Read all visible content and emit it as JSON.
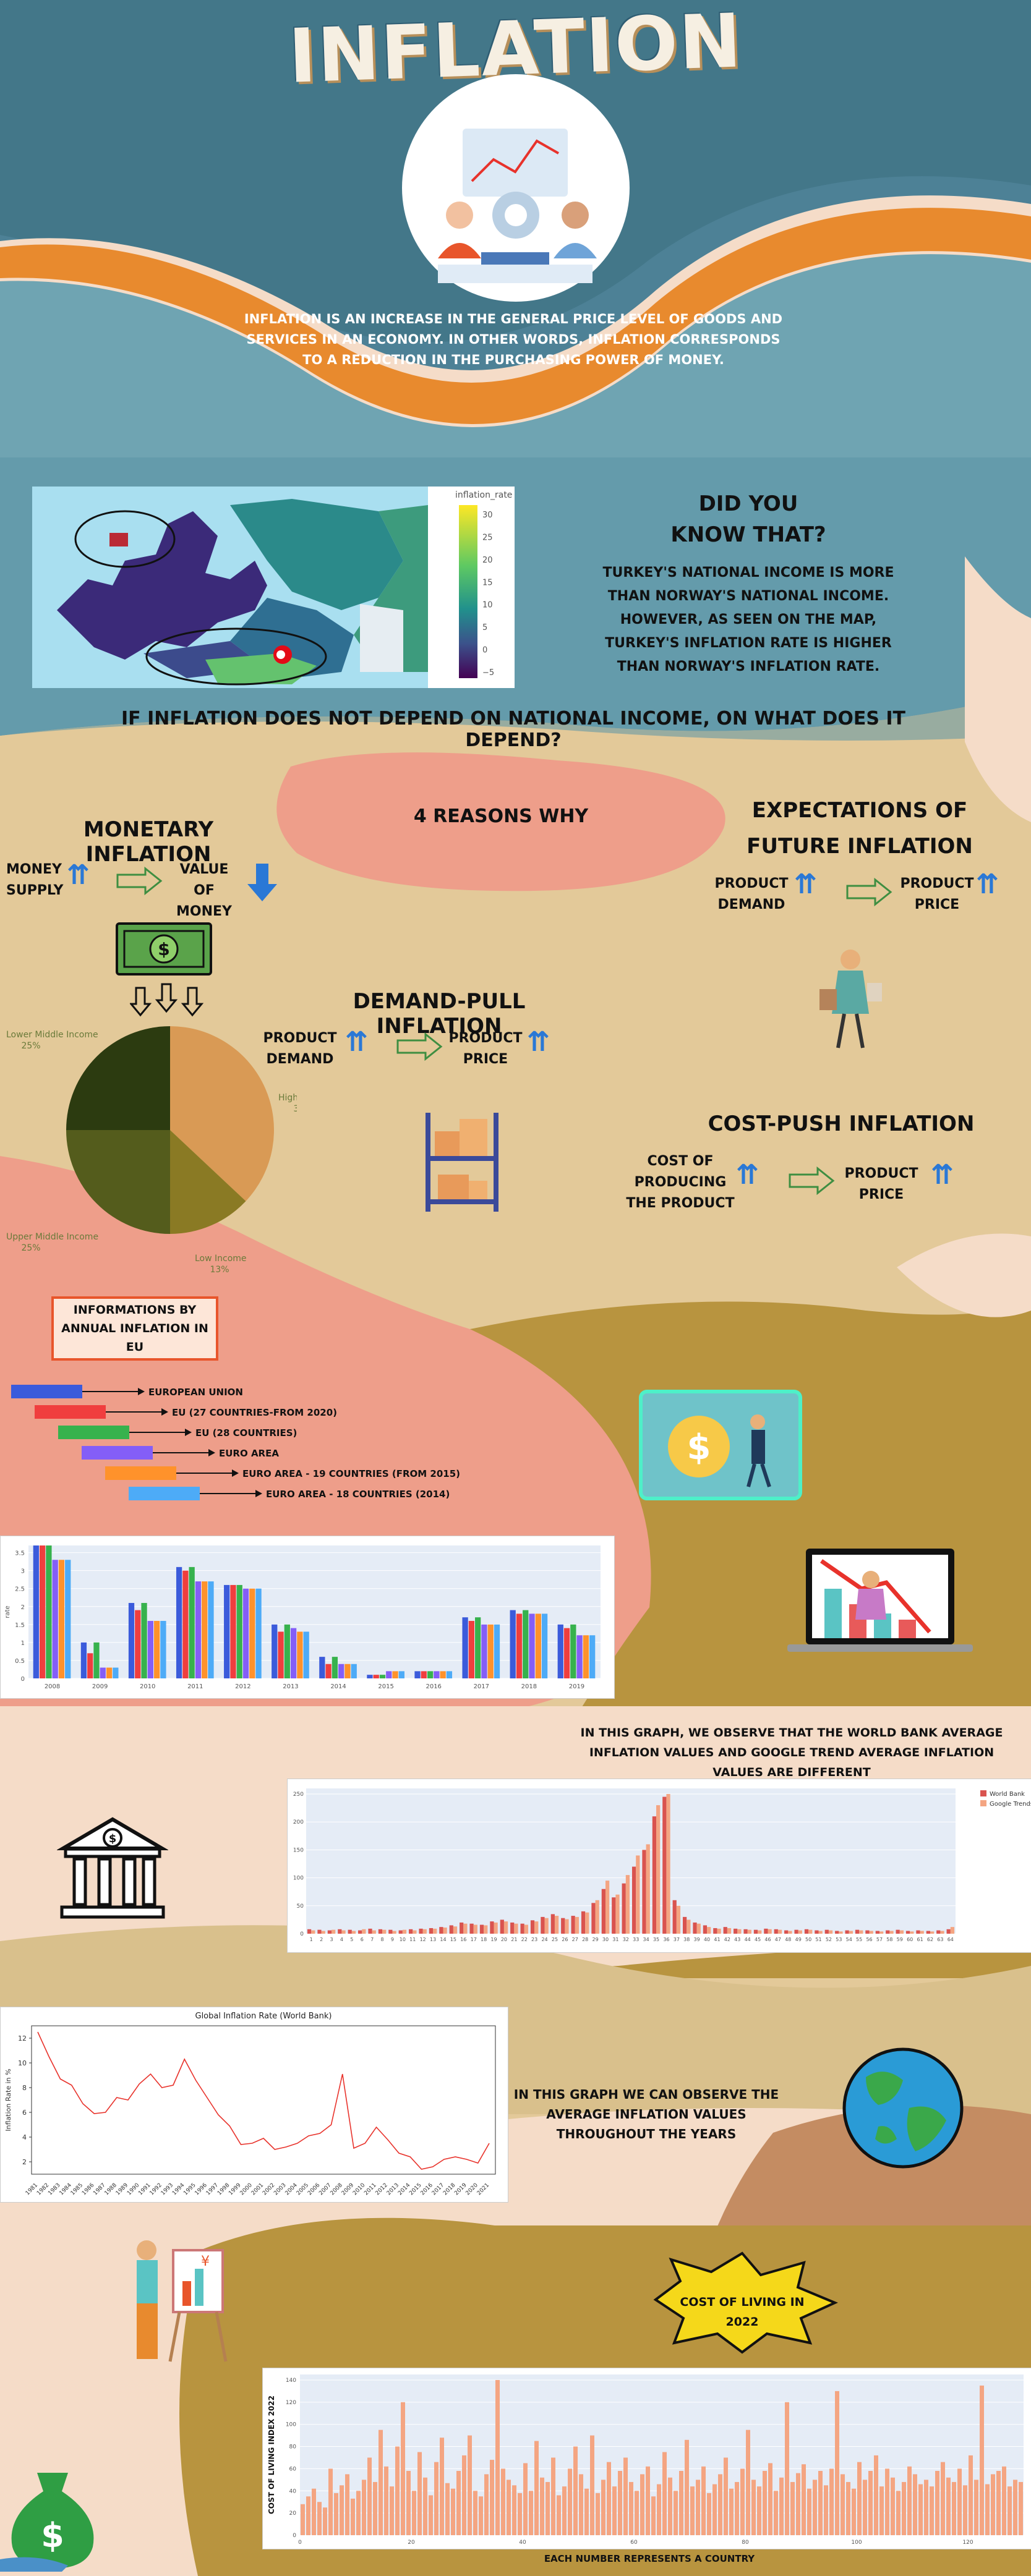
{
  "header": {
    "title": "INFLATION",
    "intro": "INFLATION IS AN INCREASE IN THE GENERAL PRICE LEVEL OF GOODS AND SERVICES IN AN ECONOMY. IN OTHER WORDS, INFLATION CORRESPONDS TO A REDUCTION IN THE PURCHASING POWER OF MONEY."
  },
  "map": {
    "colorbar_title": "inflation_rate",
    "colorbar_ticks": [
      "30",
      "25",
      "20",
      "15",
      "10",
      "5",
      "0",
      "−5"
    ]
  },
  "did_you_know": {
    "title": "DID YOU KNOW THAT?",
    "text": "TURKEY'S NATIONAL INCOME IS MORE THAN NORWAY'S NATIONAL INCOME. HOWEVER, AS SEEN ON THE MAP, TURKEY'S INFLATION RATE IS HIGHER THAN NORWAY'S INFLATION RATE."
  },
  "question": "IF INFLATION DOES NOT DEPEND ON NATIONAL INCOME, ON WHAT DOES IT DEPEND?",
  "reasons": {
    "title": "4 REASONS WHY",
    "monetary": {
      "title": "MONETARY INFLATION",
      "left": "MONEY SUPPLY",
      "right": "VALUE OF MONEY"
    },
    "expectations": {
      "title": "EXPECTATIONS OF FUTURE INFLATION",
      "left": "PRODUCT DEMAND",
      "right": "PRODUCT PRICE"
    },
    "demand_pull": {
      "title": "DEMAND-PULL INFLATION",
      "left": "PRODUCT DEMAND",
      "right": "PRODUCT PRICE"
    },
    "cost_push": {
      "title": "COST-PUSH INFLATION",
      "left": "COST OF PRODUCING THE PRODUCT",
      "right": "PRODUCT PRICE"
    }
  },
  "eu_box": {
    "title": "INFORMATIONS BY ANNUAL INFLATION IN EU",
    "legend": [
      {
        "label": "EUROPEAN UNION",
        "color": "#3b5bdb"
      },
      {
        "label": "EU (27 COUNTRIES-FROM 2020)",
        "color": "#f03e3e"
      },
      {
        "label": "EU (28 COUNTRIES)",
        "color": "#37b24d"
      },
      {
        "label": "EURO AREA",
        "color": "#845ef7"
      },
      {
        "label": "EURO AREA - 19 COUNTRIES (FROM 2015)",
        "color": "#ff922b"
      },
      {
        "label": "EURO AREA - 18 COUNTRIES (2014)",
        "color": "#4dabf7"
      }
    ]
  },
  "notes": {
    "wb_vs_google": "IN THIS GRAPH, WE OBSERVE THAT THE WORLD BANK AVERAGE INFLATION VALUES AND GOOGLE TREND AVERAGE INFLATION VALUES ARE DIFFERENT",
    "avg_years": "IN THIS GRAPH WE CAN OBSERVE THE AVERAGE INFLATION VALUES THROUGHOUT THE YEARS",
    "cost_of_living_title": "COST OF LIVING IN 2022"
  },
  "chart_data": [
    {
      "type": "pie",
      "labels": [
        "High Income",
        "Low Income",
        "Upper Middle Income",
        "Lower Middle Income"
      ],
      "values": [
        37,
        13,
        25,
        25
      ],
      "value_labels": [
        "37%",
        "13%",
        "25%",
        "25%"
      ],
      "colors": [
        "#d99a55",
        "#8a7a24",
        "#545c1c",
        "#2c3b10"
      ]
    },
    {
      "type": "bar",
      "categories": [
        "2008",
        "2009",
        "2010",
        "2011",
        "2012",
        "2013",
        "2014",
        "2015",
        "2016",
        "2017",
        "2018",
        "2019"
      ],
      "series": [
        {
          "name": "EUROPEAN UNION",
          "values": [
            3.7,
            1.0,
            2.1,
            3.1,
            2.6,
            1.5,
            0.6,
            0.1,
            0.2,
            1.7,
            1.9,
            1.5
          ]
        },
        {
          "name": "EU (27 COUNTRIES-FROM 2020)",
          "values": [
            3.7,
            0.7,
            1.9,
            3.0,
            2.6,
            1.3,
            0.4,
            0.1,
            0.2,
            1.6,
            1.8,
            1.4
          ]
        },
        {
          "name": "EU (28 COUNTRIES)",
          "values": [
            3.7,
            1.0,
            2.1,
            3.1,
            2.6,
            1.5,
            0.6,
            0.1,
            0.2,
            1.7,
            1.9,
            1.5
          ]
        },
        {
          "name": "EURO AREA",
          "values": [
            3.3,
            0.3,
            1.6,
            2.7,
            2.5,
            1.4,
            0.4,
            0.2,
            0.2,
            1.5,
            1.8,
            1.2
          ]
        },
        {
          "name": "EURO AREA - 19 COUNTRIES (FROM 2015)",
          "values": [
            3.3,
            0.3,
            1.6,
            2.7,
            2.5,
            1.3,
            0.4,
            0.2,
            0.2,
            1.5,
            1.8,
            1.2
          ]
        },
        {
          "name": "EURO AREA - 18 COUNTRIES (2014)",
          "values": [
            3.3,
            0.3,
            1.6,
            2.7,
            2.5,
            1.3,
            0.4,
            0.2,
            0.2,
            1.5,
            1.8,
            1.2
          ]
        }
      ],
      "ylim": [
        0,
        3.7
      ],
      "yticks": [
        "0",
        "0.5",
        "1",
        "1.5",
        "2",
        "2.5",
        "3",
        "3.5"
      ],
      "ylabel": "rate"
    },
    {
      "type": "bar",
      "categories": [
        "1",
        "2",
        "3",
        "4",
        "5",
        "6",
        "7",
        "8",
        "9",
        "10",
        "11",
        "12",
        "13",
        "14",
        "15",
        "16",
        "17",
        "18",
        "19",
        "20",
        "21",
        "22",
        "23",
        "24",
        "25",
        "26",
        "27",
        "28",
        "29",
        "30",
        "31",
        "32",
        "33",
        "34",
        "35",
        "36",
        "37",
        "38",
        "39",
        "40",
        "41",
        "42",
        "43",
        "44",
        "45",
        "46",
        "47",
        "48",
        "49",
        "50",
        "51",
        "52",
        "53",
        "54",
        "55",
        "56",
        "57",
        "58",
        "59",
        "60",
        "61",
        "62",
        "63",
        "64"
      ],
      "series": [
        {
          "name": "World Bank",
          "values": [
            8,
            7,
            6,
            8,
            7,
            6,
            9,
            8,
            7,
            6,
            8,
            9,
            10,
            12,
            15,
            20,
            18,
            16,
            22,
            25,
            20,
            18,
            24,
            30,
            35,
            28,
            32,
            40,
            55,
            80,
            65,
            90,
            120,
            150,
            210,
            245,
            60,
            30,
            20,
            15,
            10,
            12,
            9,
            8,
            7,
            9,
            8,
            6,
            7,
            8,
            6,
            7,
            5,
            6,
            7,
            6,
            5,
            6,
            7,
            5,
            6,
            5,
            6,
            8
          ]
        },
        {
          "name": "Google Trends",
          "values": [
            6,
            5,
            7,
            6,
            5,
            8,
            6,
            7,
            5,
            7,
            6,
            8,
            9,
            11,
            13,
            18,
            16,
            15,
            20,
            22,
            18,
            16,
            22,
            28,
            32,
            26,
            30,
            38,
            60,
            95,
            70,
            105,
            140,
            160,
            230,
            250,
            50,
            25,
            18,
            12,
            9,
            10,
            8,
            7,
            6,
            8,
            7,
            5,
            6,
            7,
            5,
            6,
            4,
            5,
            6,
            5,
            4,
            5,
            6,
            4,
            5,
            4,
            5,
            12
          ]
        }
      ],
      "colors": [
        "#d9534f",
        "#f4a582"
      ],
      "ylim": [
        0,
        260
      ],
      "yticks": [
        "0",
        "50",
        "100",
        "150",
        "200",
        "250"
      ]
    },
    {
      "type": "line",
      "title": "Global Inflation Rate (World Bank)",
      "ylabel": "Inflation Rate in %",
      "x": [
        "1981",
        "1982",
        "1983",
        "1984",
        "1985",
        "1986",
        "1987",
        "1988",
        "1989",
        "1990",
        "1991",
        "1992",
        "1993",
        "1994",
        "1995",
        "1996",
        "1997",
        "1998",
        "1999",
        "2000",
        "2001",
        "2002",
        "2003",
        "2004",
        "2005",
        "2006",
        "2007",
        "2008",
        "2009",
        "2010",
        "2011",
        "2012",
        "2013",
        "2014",
        "2015",
        "2016",
        "2017",
        "2018",
        "2019",
        "2020",
        "2021"
      ],
      "values": [
        12.5,
        10.5,
        8.7,
        8.2,
        6.7,
        5.9,
        6.0,
        7.2,
        7.0,
        8.3,
        9.1,
        8.0,
        8.2,
        10.3,
        8.6,
        7.2,
        5.8,
        4.9,
        3.4,
        3.5,
        3.9,
        3.0,
        3.2,
        3.5,
        4.1,
        4.3,
        5.0,
        9.1,
        3.1,
        3.5,
        4.8,
        3.8,
        2.7,
        2.4,
        1.4,
        1.6,
        2.2,
        2.4,
        2.2,
        1.9,
        3.5
      ],
      "ylim": [
        1,
        13
      ],
      "yticks": [
        "2",
        "4",
        "6",
        "8",
        "10",
        "12"
      ],
      "color": "#e8322b"
    },
    {
      "type": "bar",
      "title": "",
      "ylabel": "COST OF LIVING INDEX 2022",
      "xlabel": "EACH NUMBER REPRESENTS A COUNTRY",
      "values": [
        28,
        35,
        42,
        30,
        25,
        60,
        38,
        45,
        55,
        33,
        40,
        50,
        70,
        48,
        95,
        62,
        44,
        80,
        120,
        58,
        40,
        75,
        52,
        36,
        66,
        88,
        47,
        42,
        58,
        72,
        90,
        40,
        35,
        55,
        68,
        140,
        60,
        50,
        45,
        38,
        65,
        40,
        85,
        52,
        48,
        70,
        36,
        44,
        60,
        80,
        55,
        42,
        90,
        38,
        50,
        66,
        44,
        58,
        70,
        48,
        40,
        55,
        62,
        35,
        46,
        75,
        52,
        40,
        58,
        86,
        44,
        50,
        62,
        38,
        46,
        55,
        70,
        42,
        48,
        60,
        95,
        50,
        44,
        58,
        65,
        40,
        52,
        120,
        48,
        56,
        64,
        42,
        50,
        58,
        45,
        60,
        130,
        55,
        48,
        42,
        66,
        50,
        58,
        72,
        44,
        60,
        52,
        40,
        48,
        62,
        55,
        46,
        50,
        44,
        58,
        66,
        52,
        48,
        60,
        45,
        72,
        50,
        135,
        46,
        55,
        58,
        62,
        44,
        50,
        48
      ],
      "ylim": [
        0,
        145
      ],
      "yticks": [
        "0",
        "20",
        "40",
        "60",
        "80",
        "100",
        "120",
        "140"
      ],
      "xticks": [
        "0",
        "20",
        "40",
        "60",
        "80",
        "100",
        "120"
      ],
      "color": "#f4a582"
    }
  ]
}
